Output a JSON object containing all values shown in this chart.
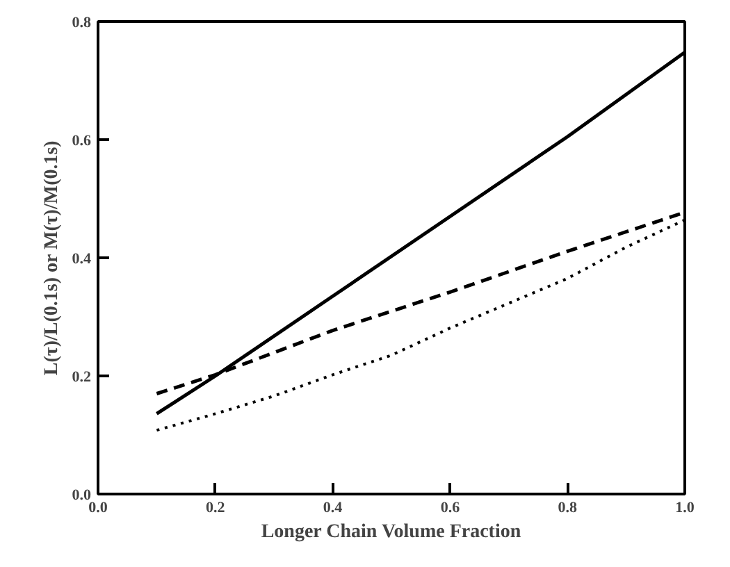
{
  "chart_data": {
    "type": "line",
    "xlabel": "Longer Chain Volume Fraction",
    "ylabel": "L(τ)/L(0.1s) or M(τ)/M(0.1s)",
    "xlim": [
      0.0,
      1.0
    ],
    "ylim": [
      0.0,
      0.8
    ],
    "xticks": [
      {
        "value": 0,
        "label": "0.0"
      },
      0.2,
      0.4,
      0.6,
      0.8,
      {
        "value": 1,
        "label": "1.0"
      }
    ],
    "yticks": [
      {
        "value": 0,
        "label": "0.0"
      },
      0.2,
      0.4,
      0.6,
      0.8
    ],
    "grid": false,
    "marker": "none",
    "series": [
      {
        "color": "#000000",
        "line_style": "solid",
        "x": [
          0.1,
          0.2,
          0.4,
          0.6,
          0.8,
          1.0
        ],
        "values": [
          0.136,
          0.2,
          0.335,
          0.47,
          0.605,
          0.748
        ]
      },
      {
        "color": "#000000",
        "line_style": "dashed",
        "x": [
          0.1,
          0.2,
          0.4,
          0.6,
          0.8,
          1.0
        ],
        "values": [
          0.17,
          0.202,
          0.277,
          0.342,
          0.411,
          0.477
        ]
      },
      {
        "color": "#000000",
        "line_style": "dotted",
        "x": [
          0.1,
          0.2,
          0.3,
          0.4,
          0.5,
          0.6,
          0.8,
          0.9,
          1.0
        ],
        "values": [
          0.108,
          0.136,
          0.166,
          0.202,
          0.235,
          0.281,
          0.365,
          0.418,
          0.464
        ]
      }
    ]
  }
}
